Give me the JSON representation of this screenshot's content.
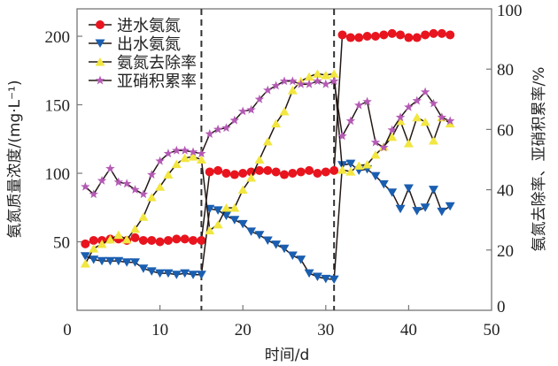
{
  "chart_data": {
    "type": "line",
    "title": "",
    "xlabel": "时间/d",
    "ylabel_left": "氨氮质量浓度/(mg·L⁻¹)",
    "ylabel_right": "氨氮去除率、亚硝积累率/%",
    "xlim": [
      0,
      50
    ],
    "ylim_left": [
      0,
      220
    ],
    "ylim_right": [
      0,
      100
    ],
    "x_ticks": [
      "0",
      "10",
      "20",
      "30",
      "40",
      "50"
    ],
    "y_left_ticks": [
      "50",
      "100",
      "150",
      "200"
    ],
    "y_right_ticks": [
      "0",
      "20",
      "40",
      "60",
      "80",
      "100"
    ],
    "phase_dividers_x": [
      15,
      31
    ],
    "legend_position": "top-left",
    "series": [
      {
        "name": "进水氨氮",
        "axis": "left",
        "color": "#e8141e",
        "marker": "circle",
        "x": [
          1,
          2,
          3,
          4,
          5,
          6,
          7,
          8,
          9,
          10,
          11,
          12,
          13,
          14,
          15,
          16,
          17,
          18,
          19,
          20,
          21,
          22,
          23,
          24,
          25,
          26,
          27,
          28,
          29,
          30,
          31,
          32,
          33,
          34,
          35,
          36,
          37,
          38,
          39,
          40,
          41,
          42,
          43,
          44,
          45
        ],
        "values": [
          48.5,
          51,
          51,
          52,
          52,
          51,
          53,
          51,
          51,
          50,
          51,
          52,
          52,
          51,
          51,
          101,
          102,
          100,
          99,
          100,
          101,
          102,
          102,
          101,
          99,
          100,
          101,
          102,
          100,
          101,
          102,
          201,
          199,
          199,
          200,
          200,
          201,
          202,
          201,
          199,
          199,
          201,
          202,
          202,
          201
        ]
      },
      {
        "name": "出水氨氮",
        "axis": "left",
        "color": "#1a5eb0",
        "marker": "triangle-down",
        "x": [
          1,
          2,
          3,
          4,
          5,
          6,
          7,
          8,
          9,
          10,
          11,
          12,
          13,
          14,
          15,
          16,
          17,
          18,
          19,
          20,
          21,
          22,
          23,
          24,
          25,
          26,
          27,
          28,
          29,
          30,
          31,
          32,
          33,
          34,
          35,
          36,
          37,
          38,
          39,
          40,
          41,
          42,
          43,
          44,
          45
        ],
        "values": [
          39.5,
          37,
          36,
          36,
          36,
          35,
          35,
          30.5,
          28.5,
          27,
          27,
          26,
          27,
          26,
          26,
          74,
          73,
          69,
          66,
          63,
          57.5,
          55,
          51,
          48,
          45,
          40,
          37,
          27,
          24.5,
          23,
          22.5,
          106,
          107,
          102,
          103,
          98,
          92,
          86,
          74,
          89,
          72.5,
          75,
          88,
          72,
          76
        ]
      },
      {
        "name": "氨氮去除率",
        "axis": "right",
        "color": "#f2e640",
        "marker": "triangle-up",
        "x": [
          1,
          2,
          3,
          4,
          5,
          6,
          7,
          8,
          9,
          10,
          11,
          12,
          13,
          14,
          15,
          16,
          17,
          18,
          19,
          20,
          21,
          22,
          23,
          24,
          25,
          26,
          27,
          28,
          29,
          30,
          31,
          32,
          33,
          34,
          35,
          36,
          37,
          38,
          39,
          40,
          41,
          42,
          43,
          44,
          45
        ],
        "values": [
          15.5,
          20.5,
          22,
          23.5,
          25,
          23.5,
          27,
          31,
          37.5,
          41,
          45,
          48.5,
          50.5,
          51,
          50,
          26.5,
          28.5,
          34,
          34,
          40,
          44,
          50,
          56,
          62,
          66,
          73,
          76,
          77.5,
          78.5,
          78,
          78.5,
          46.6,
          46,
          48,
          48.4,
          51.6,
          54.3,
          57.5,
          62.8,
          55.4,
          64,
          62.5,
          56.3,
          64,
          62
        ]
      },
      {
        "name": "亚硝积累率",
        "axis": "right",
        "color": "#b45ab4",
        "marker": "star",
        "x": [
          1,
          2,
          3,
          4,
          5,
          6,
          7,
          8,
          9,
          10,
          11,
          12,
          13,
          14,
          15,
          16,
          17,
          18,
          19,
          20,
          21,
          22,
          23,
          24,
          25,
          26,
          27,
          28,
          29,
          30,
          31,
          32,
          33,
          34,
          35,
          36,
          37,
          38,
          39,
          40,
          41,
          42,
          43,
          44,
          45
        ],
        "values": [
          41,
          38.5,
          43,
          47,
          42.5,
          42,
          40,
          38.5,
          45,
          49.5,
          52,
          53,
          53,
          52.5,
          52,
          58.5,
          60,
          60.5,
          63,
          66,
          66.5,
          70,
          73,
          74.5,
          76,
          76,
          75,
          75,
          76,
          75,
          76,
          57.8,
          62.8,
          68,
          69.2,
          55.7,
          54,
          59.8,
          64,
          67.4,
          69.5,
          72.4,
          68.6,
          64,
          62.8
        ]
      }
    ]
  }
}
